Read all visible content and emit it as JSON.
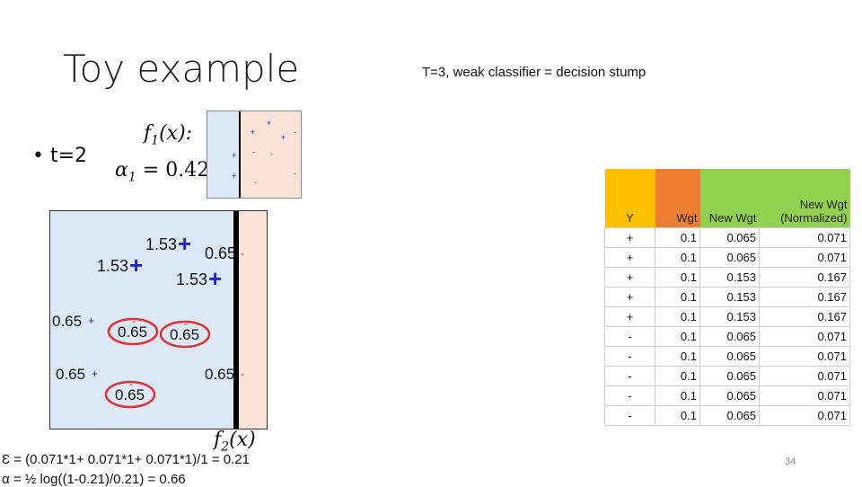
{
  "slide": {
    "title": "Toy example",
    "subtitle": "T=3, weak classifier = decision stump",
    "bullet": "• t=2",
    "f1_label": "f1(x):",
    "alpha1_label": "α1 = 0.42",
    "f2_label": "f2(x)",
    "error_eq": "Ɛ = (0.071*1+ 0.071*1+ 0.071*1)/1 = 0.21",
    "alpha_eq": "α = ½ log((1-0.21)/0.21) = 0.66",
    "page_number": "34"
  },
  "plot_points": [
    {
      "weight": "1.53",
      "sign": "+",
      "misclassified": false
    },
    {
      "weight": "1.53",
      "sign": "+",
      "misclassified": false
    },
    {
      "weight": "1.53",
      "sign": "+",
      "misclassified": false
    },
    {
      "weight": "0.65",
      "sign": "-",
      "misclassified": false
    },
    {
      "weight": "0.65",
      "sign": "+",
      "misclassified": false
    },
    {
      "weight": "0.65",
      "sign": "-",
      "misclassified": true
    },
    {
      "weight": "0.65",
      "sign": "-",
      "misclassified": true
    },
    {
      "weight": "0.65",
      "sign": "+",
      "misclassified": false
    },
    {
      "weight": "0.65",
      "sign": "-",
      "misclassified": false
    },
    {
      "weight": "0.65",
      "sign": "-",
      "misclassified": true
    }
  ],
  "table": {
    "headers": [
      "Y",
      "Wgt",
      "New Wgt",
      "New Wgt (Normalized)"
    ],
    "rows": [
      [
        "+",
        "0.1",
        "0.065",
        "0.071"
      ],
      [
        "+",
        "0.1",
        "0.065",
        "0.071"
      ],
      [
        "+",
        "0.1",
        "0.153",
        "0.167"
      ],
      [
        "+",
        "0.1",
        "0.153",
        "0.167"
      ],
      [
        "+",
        "0.1",
        "0.153",
        "0.167"
      ],
      [
        "-",
        "0.1",
        "0.065",
        "0.071"
      ],
      [
        "-",
        "0.1",
        "0.065",
        "0.071"
      ],
      [
        "-",
        "0.1",
        "0.065",
        "0.071"
      ],
      [
        "-",
        "0.1",
        "0.065",
        "0.071"
      ],
      [
        "-",
        "0.1",
        "0.065",
        "0.071"
      ]
    ]
  },
  "colors": {
    "plot_left_region": "#dde8f6",
    "plot_right_region": "#f8e3d6",
    "positive": "#2222dd",
    "negative": "#dd2222",
    "circle": "#e03030",
    "header_y": "#ffc000",
    "header_wgt": "#ed7d31",
    "header_new": "#92d050"
  }
}
